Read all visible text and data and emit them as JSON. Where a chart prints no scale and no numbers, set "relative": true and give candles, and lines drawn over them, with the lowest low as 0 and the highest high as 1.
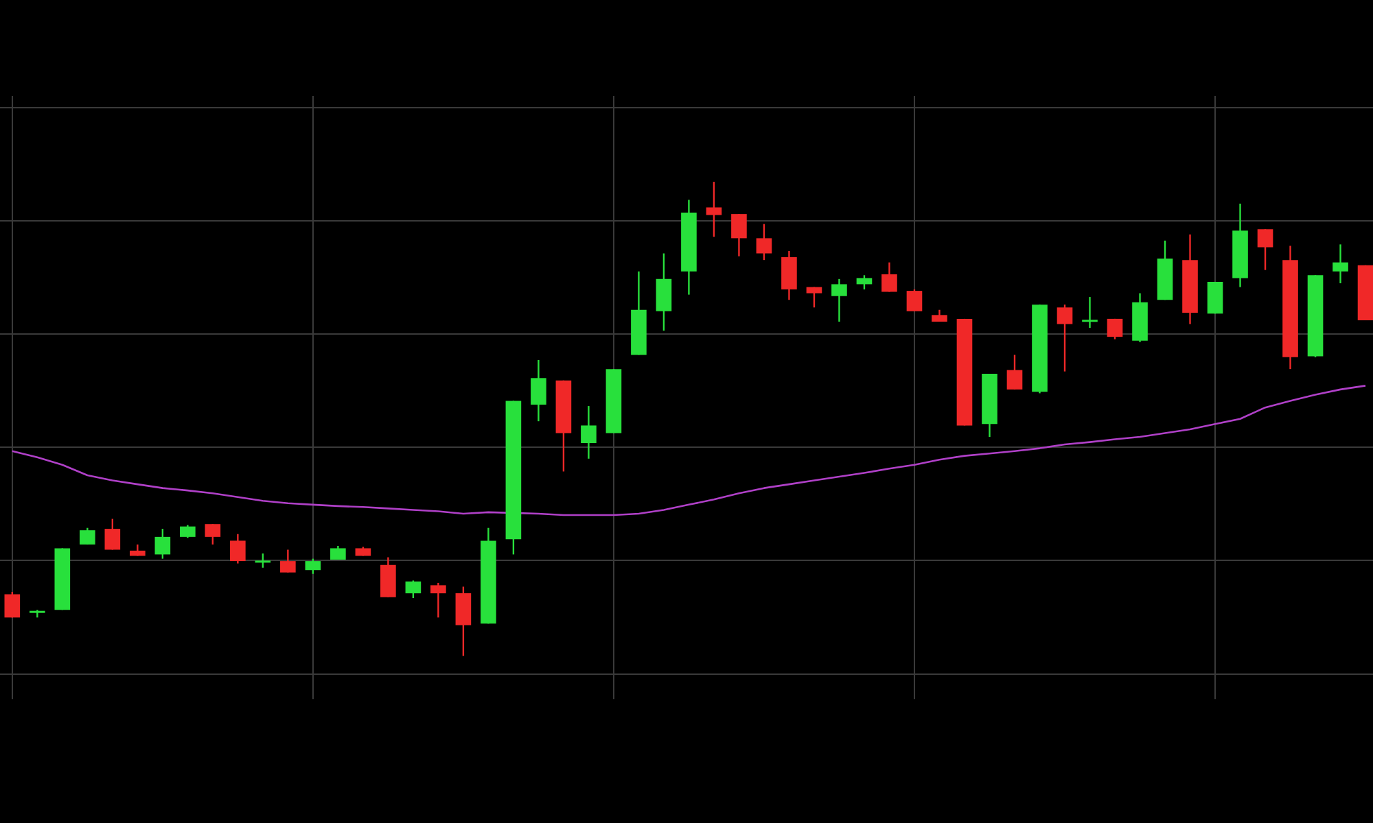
{
  "chart_data": {
    "type": "candlestick",
    "relative": true,
    "grid": true,
    "categories": [
      null,
      null,
      null,
      null,
      null,
      null,
      null,
      null,
      null,
      null,
      null,
      null,
      null,
      null,
      null,
      null,
      null,
      null,
      null,
      null,
      null,
      null,
      null,
      null,
      null,
      null,
      null,
      null,
      null,
      null,
      null,
      null,
      null,
      null,
      null,
      null,
      null,
      null,
      null,
      null,
      null,
      null,
      null,
      null,
      null,
      null,
      null,
      null,
      null,
      null,
      null,
      null,
      null,
      null,
      null
    ],
    "ohlc": [
      [
        0.13,
        0.135,
        0.081,
        0.081
      ],
      [
        0.092,
        0.097,
        0.081,
        0.095
      ],
      [
        0.097,
        0.227,
        0.097,
        0.227
      ],
      [
        0.235,
        0.27,
        0.235,
        0.265
      ],
      [
        0.268,
        0.289,
        0.224,
        0.224
      ],
      [
        0.222,
        0.235,
        0.211,
        0.211
      ],
      [
        0.214,
        0.268,
        0.205,
        0.251
      ],
      [
        0.251,
        0.276,
        0.249,
        0.273
      ],
      [
        0.278,
        0.278,
        0.235,
        0.251
      ],
      [
        0.243,
        0.257,
        0.195,
        0.2
      ],
      [
        0.199,
        0.216,
        0.186,
        0.201
      ],
      [
        0.2,
        0.224,
        0.176,
        0.176
      ],
      [
        0.181,
        0.205,
        0.173,
        0.2
      ],
      [
        0.203,
        0.232,
        0.203,
        0.227
      ],
      [
        0.227,
        0.23,
        0.211,
        0.211
      ],
      [
        0.192,
        0.208,
        0.124,
        0.124
      ],
      [
        0.132,
        0.159,
        0.122,
        0.157
      ],
      [
        0.149,
        0.154,
        0.081,
        0.132
      ],
      [
        0.132,
        0.146,
        0,
        0.065
      ],
      [
        0.068,
        0.27,
        0.068,
        0.243
      ],
      [
        0.246,
        0.538,
        0.214,
        0.538
      ],
      [
        0.53,
        0.624,
        0.495,
        0.586
      ],
      [
        0.581,
        0.581,
        0.389,
        0.47
      ],
      [
        0.449,
        0.527,
        0.416,
        0.486
      ],
      [
        0.47,
        0.605,
        0.47,
        0.605
      ],
      [
        0.635,
        0.811,
        0.635,
        0.73
      ],
      [
        0.727,
        0.849,
        0.686,
        0.795
      ],
      [
        0.811,
        0.962,
        0.762,
        0.935
      ],
      [
        0.946,
        1,
        0.884,
        0.93
      ],
      [
        0.932,
        0.932,
        0.843,
        0.881
      ],
      [
        0.881,
        0.911,
        0.835,
        0.849
      ],
      [
        0.841,
        0.854,
        0.751,
        0.773
      ],
      [
        0.778,
        0.778,
        0.735,
        0.765
      ],
      [
        0.759,
        0.795,
        0.705,
        0.784
      ],
      [
        0.784,
        0.803,
        0.773,
        0.797
      ],
      [
        0.805,
        0.83,
        0.768,
        0.768
      ],
      [
        0.77,
        0.773,
        0.727,
        0.727
      ],
      [
        0.719,
        0.73,
        0.705,
        0.705
      ],
      [
        0.711,
        0.711,
        0.486,
        0.486
      ],
      [
        0.489,
        0.595,
        0.462,
        0.595
      ],
      [
        0.603,
        0.635,
        0.562,
        0.562
      ],
      [
        0.557,
        0.741,
        0.554,
        0.741
      ],
      [
        0.735,
        0.741,
        0.6,
        0.7
      ],
      [
        0.707,
        0.757,
        0.692,
        0.709
      ],
      [
        0.711,
        0.711,
        0.668,
        0.673
      ],
      [
        0.665,
        0.765,
        0.662,
        0.746
      ],
      [
        0.751,
        0.876,
        0.751,
        0.838
      ],
      [
        0.835,
        0.889,
        0.7,
        0.724
      ],
      [
        0.722,
        0.789,
        0.722,
        0.789
      ],
      [
        0.797,
        0.954,
        0.778,
        0.897
      ],
      [
        0.9,
        0.9,
        0.814,
        0.862
      ],
      [
        0.835,
        0.865,
        0.605,
        0.63
      ],
      [
        0.632,
        0.803,
        0.63,
        0.803
      ],
      [
        0.811,
        0.868,
        0.786,
        0.83
      ],
      [
        0.824,
        0.824,
        0.708,
        0.708
      ]
    ],
    "colors": [
      "#f02828",
      "#28e03c",
      "#28e03c",
      "#28e03c",
      "#f02828",
      "#f02828",
      "#28e03c",
      "#28e03c",
      "#f02828",
      "#f02828",
      "#28e03c",
      "#f02828",
      "#28e03c",
      "#28e03c",
      "#f02828",
      "#f02828",
      "#28e03c",
      "#f02828",
      "#f02828",
      "#28e03c",
      "#28e03c",
      "#28e03c",
      "#f02828",
      "#28e03c",
      "#28e03c",
      "#28e03c",
      "#28e03c",
      "#28e03c",
      "#f02828",
      "#f02828",
      "#f02828",
      "#f02828",
      "#f02828",
      "#28e03c",
      "#28e03c",
      "#f02828",
      "#f02828",
      "#f02828",
      "#f02828",
      "#28e03c",
      "#f02828",
      "#28e03c",
      "#f02828",
      "#28e03c",
      "#f02828",
      "#28e03c",
      "#28e03c",
      "#f02828",
      "#28e03c",
      "#28e03c",
      "#f02828",
      "#f02828",
      "#28e03c",
      "#28e03c",
      "#f02828"
    ],
    "series": [
      {
        "type": "line",
        "color": "#b040c8",
        "values": [
          0.432,
          0.419,
          0.403,
          0.381,
          0.37,
          0.362,
          0.354,
          0.349,
          0.343,
          0.335,
          0.327,
          0.322,
          0.319,
          0.316,
          0.314,
          0.311,
          0.308,
          0.305,
          0.3,
          0.303,
          null,
          0.3,
          0.297,
          0.297,
          0.297,
          0.3,
          0.308,
          0.319,
          0.33,
          0.343,
          0.354,
          0.362,
          0.37,
          0.378,
          0.386,
          0.395,
          0.403,
          0.414,
          0.422,
          0.427,
          0.432,
          0.438,
          0.446,
          0.451,
          0.457,
          0.462,
          0.47,
          0.478,
          0.489,
          0.5,
          0.524,
          0.538,
          0.551,
          0.562,
          0.57
        ]
      }
    ]
  }
}
